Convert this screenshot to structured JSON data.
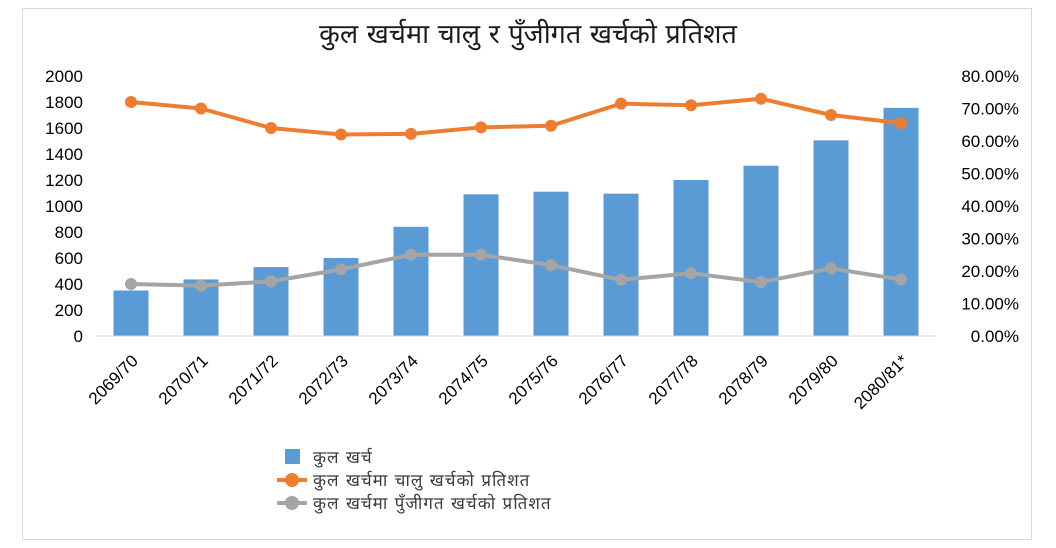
{
  "chart_data": {
    "type": "bar+line",
    "title": "कुल खर्चमा चालु र पुँजीगत खर्चको प्रतिशत",
    "categories": [
      "2069/70",
      "2070/71",
      "2071/72",
      "2072/73",
      "2073/74",
      "2074/75",
      "2075/76",
      "2076/77",
      "2077/78",
      "2078/79",
      "2079/80",
      "2080/81*"
    ],
    "y_left": {
      "min": 0,
      "max": 2000,
      "step": 200,
      "ticks": [
        "0",
        "200",
        "400",
        "600",
        "800",
        "1000",
        "1200",
        "1400",
        "1600",
        "1800",
        "2000"
      ]
    },
    "y_right": {
      "min": 0,
      "max": 80,
      "step": 10,
      "ticks": [
        "0.00%",
        "10.00%",
        "20.00%",
        "30.00%",
        "40.00%",
        "50.00%",
        "60.00%",
        "70.00%",
        "80.00%"
      ]
    },
    "series": [
      {
        "name": "कुल खर्च",
        "type": "bar",
        "axis": "left",
        "color": "#5b9bd5",
        "values": [
          350,
          435,
          530,
          600,
          840,
          1090,
          1110,
          1095,
          1200,
          1310,
          1505,
          1755
        ]
      },
      {
        "name": "कुल खर्चमा चालु खर्चको प्रतिशत",
        "type": "line",
        "axis": "right",
        "color": "#ed7d31",
        "values": [
          72.0,
          70.0,
          64.0,
          62.0,
          62.2,
          64.2,
          64.7,
          71.5,
          71.0,
          73.0,
          68.0,
          65.5
        ]
      },
      {
        "name": "कुल खर्चमा पुँजीगत खर्चको प्रतिशत",
        "type": "line",
        "axis": "right",
        "color": "#a5a5a5",
        "values": [
          16.0,
          15.5,
          16.8,
          20.5,
          25.0,
          25.0,
          21.8,
          17.3,
          19.3,
          16.6,
          20.8,
          17.4
        ]
      }
    ],
    "grid": false,
    "legend_position": "bottom-center"
  }
}
